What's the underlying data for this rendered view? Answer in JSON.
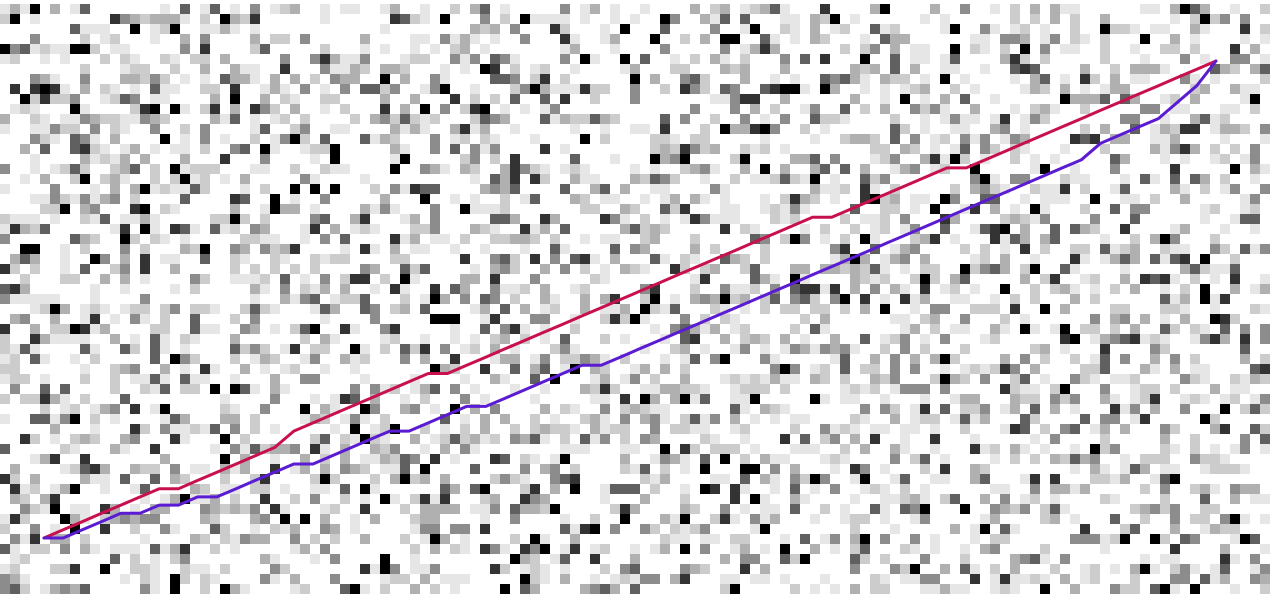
{
  "board": {
    "background": "#ffffff",
    "cell_shades": [
      "#e6e6e6",
      "#cccccc",
      "#b0b0b0",
      "#8c8c8c",
      "#606060",
      "#333333",
      "#000000"
    ],
    "cell_seed": 7319,
    "cell_density": 0.46
  },
  "paths": [
    {
      "id": "red-path",
      "color": "#c8104e",
      "points": [
        [
          1,
          44
        ],
        [
          3,
          45
        ],
        [
          5,
          46
        ],
        [
          7,
          47
        ],
        [
          9,
          48
        ],
        [
          11,
          49
        ],
        [
          13,
          50
        ],
        [
          15,
          50
        ],
        [
          17,
          51
        ],
        [
          19,
          52
        ],
        [
          21,
          53
        ],
        [
          23,
          54
        ],
        [
          25,
          55
        ],
        [
          27,
          57
        ],
        [
          29,
          58
        ],
        [
          31,
          59
        ],
        [
          33,
          60
        ],
        [
          35,
          61
        ],
        [
          37,
          62
        ],
        [
          39,
          63
        ],
        [
          41,
          64
        ],
        [
          43,
          64
        ],
        [
          45,
          65
        ],
        [
          47,
          66
        ],
        [
          49,
          67
        ],
        [
          51,
          68
        ],
        [
          53,
          69
        ],
        [
          55,
          70
        ],
        [
          57,
          71
        ],
        [
          59,
          72
        ],
        [
          61,
          73
        ],
        [
          63,
          74
        ],
        [
          65,
          75
        ],
        [
          67,
          76
        ],
        [
          69,
          77
        ],
        [
          71,
          78
        ],
        [
          73,
          79
        ],
        [
          75,
          80
        ],
        [
          77,
          81
        ],
        [
          79,
          82
        ],
        [
          81,
          83
        ],
        [
          83,
          83
        ],
        [
          85,
          84
        ],
        [
          87,
          85
        ],
        [
          89,
          86
        ],
        [
          91,
          87
        ],
        [
          93,
          88
        ],
        [
          95,
          89
        ],
        [
          97,
          89
        ],
        [
          99,
          90
        ],
        [
          101,
          91
        ],
        [
          103,
          92
        ],
        [
          105,
          93
        ],
        [
          107,
          94
        ],
        [
          109,
          95
        ],
        [
          111,
          96
        ],
        [
          113,
          97
        ],
        [
          115,
          98
        ],
        [
          117,
          99
        ],
        [
          119,
          100
        ],
        [
          121,
          101
        ],
        [
          123,
          102
        ]
      ]
    },
    {
      "id": "purple-path",
      "color": "#5a1bd2",
      "points": [
        [
          1,
          44
        ],
        [
          3,
          44
        ],
        [
          5,
          45
        ],
        [
          7,
          46
        ],
        [
          9,
          47
        ],
        [
          11,
          47
        ],
        [
          13,
          48
        ],
        [
          15,
          48
        ],
        [
          17,
          49
        ],
        [
          19,
          49
        ],
        [
          21,
          50
        ],
        [
          23,
          51
        ],
        [
          25,
          52
        ],
        [
          27,
          53
        ],
        [
          29,
          53
        ],
        [
          31,
          54
        ],
        [
          33,
          55
        ],
        [
          35,
          56
        ],
        [
          37,
          57
        ],
        [
          39,
          57
        ],
        [
          41,
          58
        ],
        [
          43,
          59
        ],
        [
          45,
          60
        ],
        [
          47,
          60
        ],
        [
          49,
          61
        ],
        [
          51,
          62
        ],
        [
          53,
          63
        ],
        [
          55,
          64
        ],
        [
          57,
          65
        ],
        [
          59,
          65
        ],
        [
          61,
          66
        ],
        [
          63,
          67
        ],
        [
          65,
          68
        ],
        [
          67,
          69
        ],
        [
          69,
          70
        ],
        [
          71,
          71
        ],
        [
          73,
          72
        ],
        [
          75,
          73
        ],
        [
          77,
          74
        ],
        [
          79,
          75
        ],
        [
          81,
          76
        ],
        [
          83,
          77
        ],
        [
          85,
          78
        ],
        [
          87,
          79
        ],
        [
          89,
          80
        ],
        [
          91,
          81
        ],
        [
          93,
          82
        ],
        [
          95,
          83
        ],
        [
          97,
          84
        ],
        [
          99,
          85
        ],
        [
          101,
          86
        ],
        [
          103,
          87
        ],
        [
          105,
          88
        ],
        [
          107,
          89
        ],
        [
          109,
          90
        ],
        [
          111,
          92
        ],
        [
          113,
          93
        ],
        [
          115,
          94
        ],
        [
          117,
          95
        ],
        [
          119,
          97
        ],
        [
          121,
          99
        ],
        [
          123,
          102
        ]
      ]
    }
  ]
}
